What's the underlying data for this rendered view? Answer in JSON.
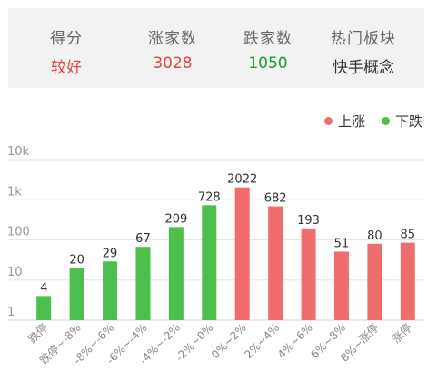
{
  "summary": [
    {
      "label": "得分",
      "value": "较好",
      "color": "#e8423f"
    },
    {
      "label": "涨家数",
      "value": "3028",
      "color": "#e8423f"
    },
    {
      "label": "跌家数",
      "value": "1050",
      "color": "#1a9c2e"
    },
    {
      "label": "热门板块",
      "value": "快手概念",
      "color": "#333333"
    }
  ],
  "legend": [
    {
      "label": "上涨",
      "color": "#ef6d6d"
    },
    {
      "label": "下跌",
      "color": "#4cbf4c"
    }
  ],
  "chart_data": {
    "type": "bar",
    "yscale": "log",
    "ylim": [
      1,
      10000
    ],
    "yticks": [
      {
        "value": 1,
        "label": "1"
      },
      {
        "value": 10,
        "label": "10"
      },
      {
        "value": 100,
        "label": "100"
      },
      {
        "value": 1000,
        "label": "1k"
      },
      {
        "value": 10000,
        "label": "10k"
      }
    ],
    "grid": true,
    "legend_position": "top-right",
    "categories": [
      "跌停",
      "跌停~-8%",
      "-8%~-6%",
      "-6%~-4%",
      "-4%~-2%",
      "-2%~0%",
      "0%~2%",
      "2%~4%",
      "4%~6%",
      "6%~8%",
      "8%~涨停",
      "涨停"
    ],
    "values": [
      4,
      20,
      29,
      67,
      209,
      728,
      2022,
      682,
      193,
      51,
      80,
      85
    ],
    "colors": [
      "#4cbf4c",
      "#4cbf4c",
      "#4cbf4c",
      "#4cbf4c",
      "#4cbf4c",
      "#4cbf4c",
      "#ef6d6d",
      "#ef6d6d",
      "#ef6d6d",
      "#ef6d6d",
      "#ef6d6d",
      "#ef6d6d"
    ]
  }
}
